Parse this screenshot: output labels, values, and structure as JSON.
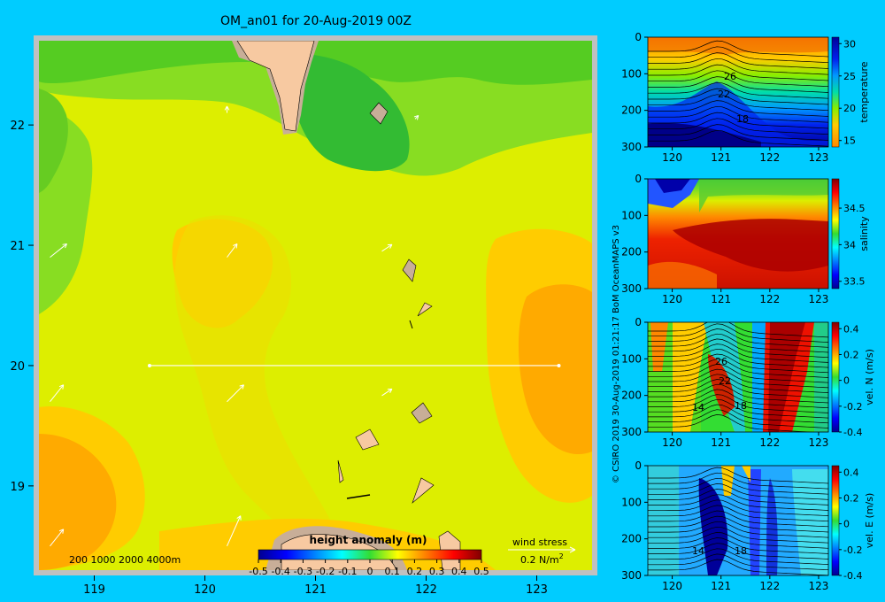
{
  "colors": {
    "background": "#00ccff",
    "land": "#f7c9a1",
    "shelf": "#c8ae98",
    "frame": "#c0c0c0"
  },
  "chart_data": [
    {
      "type": "heatmap",
      "title": "OM_an01 for 20-Aug-2019 00Z",
      "xlabel": "",
      "ylabel": "",
      "xlim": [
        118.5,
        123.5
      ],
      "ylim": [
        18.3,
        22.7
      ],
      "x_ticks": [
        "119",
        "120",
        "121",
        "122",
        "123"
      ],
      "y_ticks": [
        "19",
        "20",
        "21",
        "22"
      ],
      "colorbar": {
        "label": "height anomaly (m)",
        "ticks": [
          "-0.5",
          "-0.4",
          "-0.3",
          "-0.2",
          "-0.1",
          "0",
          "0.1",
          "0.2",
          "0.3",
          "0.4",
          "0.5"
        ],
        "range": [
          -0.5,
          0.5
        ]
      },
      "depth_legend": "200  1000  2000  4000m",
      "wind_legend": {
        "label": "wind stress",
        "value": "0.2 N/m",
        "superscript": "2"
      },
      "transect": {
        "lon": [
          119.5,
          123.2
        ],
        "lat": 20.0
      },
      "field": [
        {
          "lon": 119.0,
          "lat": 22.4,
          "value": 0.05
        },
        {
          "lon": 121.0,
          "lat": 22.0,
          "value": 0.0
        },
        {
          "lon": 120.5,
          "lat": 21.2,
          "value": 0.25
        },
        {
          "lon": 120.2,
          "lat": 20.0,
          "value": 0.2
        },
        {
          "lon": 123.1,
          "lat": 20.0,
          "value": 0.3
        },
        {
          "lon": 118.8,
          "lat": 18.8,
          "value": 0.25
        },
        {
          "lon": 119.0,
          "lat": 20.5,
          "value": 0.1
        }
      ],
      "wind_vectors": [
        {
          "lon": 118.6,
          "lat": 20.9,
          "u": 0.05,
          "v": 0.04
        },
        {
          "lon": 120.2,
          "lat": 20.9,
          "u": 0.03,
          "v": 0.04
        },
        {
          "lon": 121.6,
          "lat": 20.95,
          "u": 0.03,
          "v": 0.02
        },
        {
          "lon": 118.6,
          "lat": 19.7,
          "u": 0.04,
          "v": 0.05
        },
        {
          "lon": 120.2,
          "lat": 19.7,
          "u": 0.05,
          "v": 0.05
        },
        {
          "lon": 121.6,
          "lat": 19.75,
          "u": 0.03,
          "v": 0.02
        },
        {
          "lon": 118.6,
          "lat": 18.5,
          "u": 0.04,
          "v": 0.05
        },
        {
          "lon": 120.2,
          "lat": 18.5,
          "u": 0.04,
          "v": 0.09
        },
        {
          "lon": 120.2,
          "lat": 22.1,
          "u": 0.0,
          "v": 0.02
        },
        {
          "lon": 121.9,
          "lat": 22.05,
          "u": 0.01,
          "v": 0.01
        }
      ]
    },
    {
      "type": "heatmap",
      "ylabel": "",
      "colorbar_label": "temperature",
      "colorbar_ticks": [
        "15",
        "20",
        "25",
        "30"
      ],
      "colorbar_range": [
        14,
        31
      ],
      "x_ticks": [
        "120",
        "121",
        "122",
        "123"
      ],
      "y_ticks": [
        "0",
        "100",
        "200",
        "300"
      ],
      "xlim": [
        119.5,
        123.2
      ],
      "ylim": [
        0,
        300
      ],
      "contour_labels": [
        "26",
        "22",
        "18"
      ],
      "profile": [
        {
          "depth": 0,
          "value": 29.5
        },
        {
          "depth": 50,
          "value": 27
        },
        {
          "depth": 100,
          "value": 23
        },
        {
          "depth": 150,
          "value": 19.5
        },
        {
          "depth": 200,
          "value": 17
        },
        {
          "depth": 300,
          "value": 14.5
        }
      ]
    },
    {
      "type": "heatmap",
      "colorbar_label": "salinity",
      "colorbar_ticks": [
        "33.5",
        "34",
        "34.5"
      ],
      "colorbar_range": [
        33.4,
        34.9
      ],
      "x_ticks": [
        "120",
        "121",
        "122",
        "123"
      ],
      "y_ticks": [
        "0",
        "100",
        "200",
        "300"
      ],
      "xlim": [
        119.5,
        123.2
      ],
      "ylim": [
        0,
        300
      ],
      "profile": [
        {
          "depth": 0,
          "value": 33.6
        },
        {
          "depth": 60,
          "value": 34.3
        },
        {
          "depth": 150,
          "value": 34.7
        },
        {
          "depth": 300,
          "value": 34.6
        }
      ]
    },
    {
      "type": "heatmap",
      "colorbar_label": "vel. N (m/s)",
      "colorbar_ticks": [
        "0.4",
        "0.2",
        "0",
        "-0.2",
        "-0.4"
      ],
      "colorbar_range": [
        -0.4,
        0.45
      ],
      "x_ticks": [
        "120",
        "121",
        "122",
        "123"
      ],
      "y_ticks": [
        "0",
        "100",
        "200",
        "300"
      ],
      "xlim": [
        119.5,
        123.2
      ],
      "ylim": [
        0,
        300
      ],
      "contour_labels": [
        "26",
        "22",
        "14",
        "18"
      ]
    },
    {
      "type": "heatmap",
      "colorbar_label": "vel. E (m/s)",
      "colorbar_ticks": [
        "0.4",
        "0.2",
        "0",
        "-0.2",
        "-0.4"
      ],
      "colorbar_range": [
        -0.4,
        0.45
      ],
      "x_ticks": [
        "120",
        "121",
        "122",
        "123"
      ],
      "y_ticks": [
        "0",
        "100",
        "200",
        "300"
      ],
      "xlim": [
        119.5,
        123.2
      ],
      "ylim": [
        0,
        300
      ],
      "contour_labels": [
        "14",
        "18"
      ]
    }
  ],
  "credit": "© CSIRO 2019   30-Aug-2019 01:21:17 BoM OceanMAPS v3"
}
